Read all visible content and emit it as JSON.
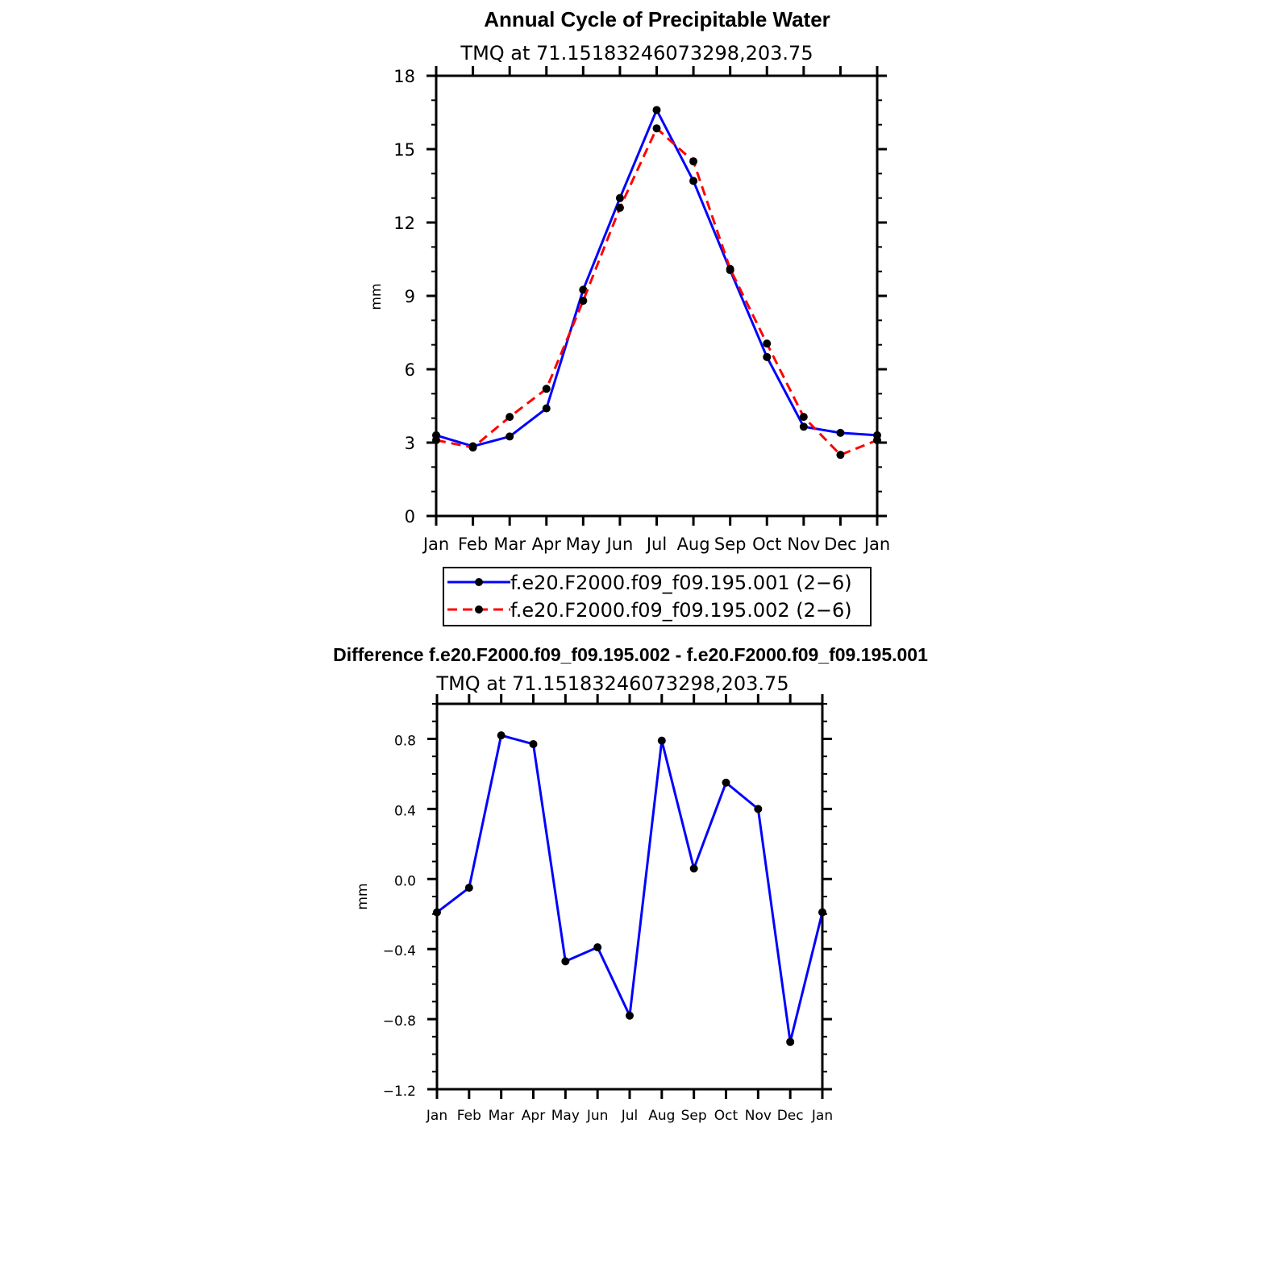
{
  "chart_data": [
    {
      "type": "line",
      "title": "Annual Cycle of Precipitable Water",
      "subtitle": "TMQ at 71.15183246073298,203.75",
      "xlabel": "",
      "ylabel": "mm",
      "categories": [
        "Jan",
        "Feb",
        "Mar",
        "Apr",
        "May",
        "Jun",
        "Jul",
        "Aug",
        "Sep",
        "Oct",
        "Nov",
        "Dec",
        "Jan"
      ],
      "ylim": [
        0,
        18
      ],
      "yticks": [
        "0",
        "3",
        "6",
        "9",
        "12",
        "15",
        "18"
      ],
      "legend_position": "bottom",
      "series": [
        {
          "name": "f.e20.F2000.f09_f09.195.001 (2−6)",
          "color": "#0000ff",
          "dash": "solid",
          "values": [
            3.3,
            2.85,
            3.25,
            4.4,
            9.25,
            13.0,
            16.6,
            13.7,
            10.05,
            6.5,
            3.65,
            3.4,
            3.3
          ]
        },
        {
          "name": "f.e20.F2000.f09_f09.195.002 (2−6)",
          "color": "#ff0000",
          "dash": "dashed",
          "values": [
            3.1,
            2.8,
            4.05,
            5.2,
            8.8,
            12.6,
            15.85,
            14.5,
            10.1,
            7.05,
            4.05,
            2.5,
            3.1
          ]
        }
      ]
    },
    {
      "type": "line",
      "title": "Difference f.e20.F2000.f09_f09.195.002 - f.e20.F2000.f09_f09.195.001",
      "subtitle": "TMQ at 71.15183246073298,203.75",
      "xlabel": "",
      "ylabel": "mm",
      "categories": [
        "Jan",
        "Feb",
        "Mar",
        "Apr",
        "May",
        "Jun",
        "Jul",
        "Aug",
        "Sep",
        "Oct",
        "Nov",
        "Dec",
        "Jan"
      ],
      "ylim": [
        -1.2,
        1.0
      ],
      "yticks": [
        "−1.2",
        "−0.8",
        "−0.4",
        "0.0",
        "0.4",
        "0.8"
      ],
      "series": [
        {
          "name": "difference",
          "color": "#0000ff",
          "dash": "solid",
          "values": [
            -0.19,
            -0.05,
            0.82,
            0.77,
            -0.47,
            -0.39,
            -0.78,
            0.79,
            0.06,
            0.55,
            0.4,
            -0.93,
            -0.19
          ]
        }
      ]
    }
  ]
}
